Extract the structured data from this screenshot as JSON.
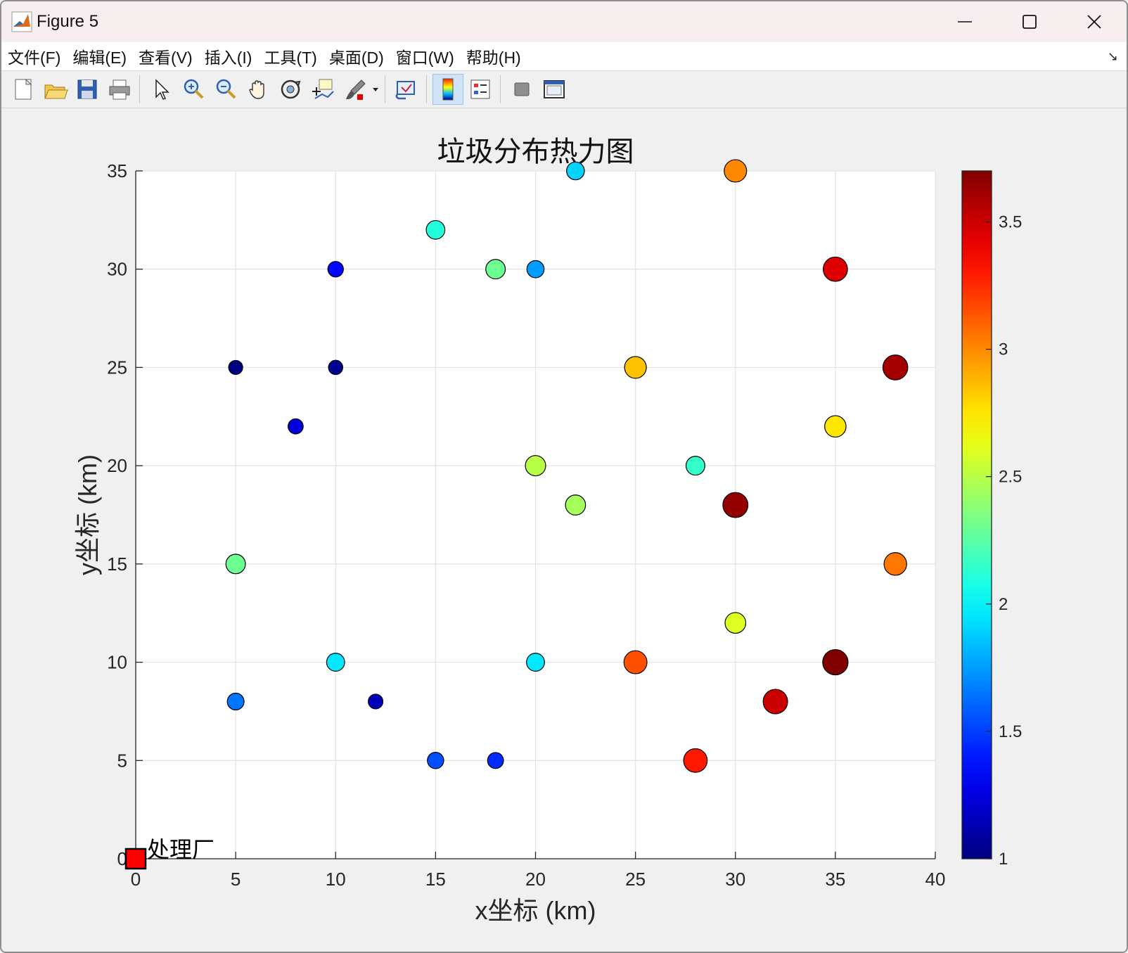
{
  "window": {
    "title": "Figure 5",
    "minimize_label": "minimize",
    "maximize_label": "maximize",
    "close_label": "close"
  },
  "menu": [
    "文件(F)",
    "编辑(E)",
    "查看(V)",
    "插入(I)",
    "工具(T)",
    "桌面(D)",
    "窗口(W)",
    "帮助(H)"
  ],
  "toolbar": [
    {
      "name": "new-figure-icon"
    },
    {
      "name": "open-file-icon"
    },
    {
      "name": "save-icon"
    },
    {
      "name": "print-icon"
    },
    {
      "name": "sep"
    },
    {
      "name": "edit-pointer-icon"
    },
    {
      "name": "zoom-in-icon"
    },
    {
      "name": "zoom-out-icon"
    },
    {
      "name": "pan-hand-icon"
    },
    {
      "name": "rotate-3d-icon"
    },
    {
      "name": "data-tips-icon"
    },
    {
      "name": "brush-icon",
      "dropdown": true
    },
    {
      "name": "sep"
    },
    {
      "name": "link-plot-icon"
    },
    {
      "name": "sep"
    },
    {
      "name": "colorbar-icon",
      "active": true
    },
    {
      "name": "legend-icon"
    },
    {
      "name": "sep"
    },
    {
      "name": "hide-plot-tools-icon"
    },
    {
      "name": "show-plot-tools-icon"
    }
  ],
  "chart_data": {
    "type": "scatter",
    "title": "垃圾分布热力图",
    "xlabel": "x坐标 (km)",
    "ylabel": "y坐标 (km)",
    "xlim": [
      0,
      40
    ],
    "ylim": [
      0,
      35
    ],
    "xticks": [
      0,
      5,
      10,
      15,
      20,
      25,
      30,
      35,
      40
    ],
    "yticks": [
      0,
      5,
      10,
      15,
      20,
      25,
      30,
      35
    ],
    "grid": true,
    "colormap": "jet",
    "clim": [
      1,
      3.7
    ],
    "colorbar_ticks": [
      1,
      1.5,
      2,
      2.5,
      3,
      3.5
    ],
    "points": [
      {
        "x": 5,
        "y": 25,
        "value": 1.0
      },
      {
        "x": 10,
        "y": 25,
        "value": 1.05
      },
      {
        "x": 12,
        "y": 8,
        "value": 1.15
      },
      {
        "x": 8,
        "y": 22,
        "value": 1.25
      },
      {
        "x": 10,
        "y": 30,
        "value": 1.35
      },
      {
        "x": 18,
        "y": 5,
        "value": 1.45
      },
      {
        "x": 15,
        "y": 5,
        "value": 1.55
      },
      {
        "x": 5,
        "y": 8,
        "value": 1.65
      },
      {
        "x": 20,
        "y": 30,
        "value": 1.75
      },
      {
        "x": 22,
        "y": 35,
        "value": 1.9
      },
      {
        "x": 10,
        "y": 10,
        "value": 1.95
      },
      {
        "x": 20,
        "y": 10,
        "value": 1.95
      },
      {
        "x": 15,
        "y": 32,
        "value": 2.1
      },
      {
        "x": 28,
        "y": 20,
        "value": 2.15
      },
      {
        "x": 18,
        "y": 30,
        "value": 2.3
      },
      {
        "x": 5,
        "y": 15,
        "value": 2.3
      },
      {
        "x": 22,
        "y": 18,
        "value": 2.45
      },
      {
        "x": 20,
        "y": 20,
        "value": 2.5
      },
      {
        "x": 30,
        "y": 12,
        "value": 2.6
      },
      {
        "x": 35,
        "y": 22,
        "value": 2.75
      },
      {
        "x": 25,
        "y": 25,
        "value": 2.85
      },
      {
        "x": 30,
        "y": 35,
        "value": 3.0
      },
      {
        "x": 38,
        "y": 15,
        "value": 3.05
      },
      {
        "x": 25,
        "y": 10,
        "value": 3.15
      },
      {
        "x": 28,
        "y": 5,
        "value": 3.3
      },
      {
        "x": 35,
        "y": 30,
        "value": 3.45
      },
      {
        "x": 32,
        "y": 8,
        "value": 3.5
      },
      {
        "x": 38,
        "y": 25,
        "value": 3.6
      },
      {
        "x": 30,
        "y": 18,
        "value": 3.65
      },
      {
        "x": 35,
        "y": 10,
        "value": 3.7
      }
    ],
    "facility": {
      "x": 0,
      "y": 0,
      "label": "处理厂",
      "color": "#ff0000"
    }
  }
}
